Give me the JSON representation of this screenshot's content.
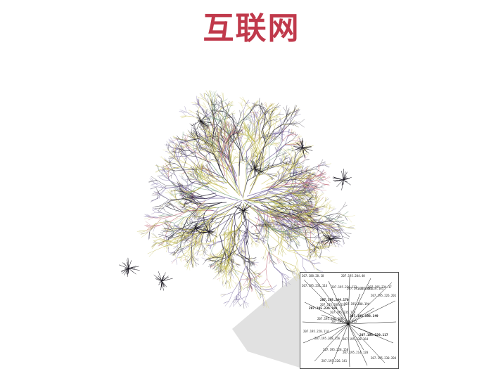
{
  "title": "互联网",
  "colors": {
    "title": "#c0394b",
    "edge_palette": [
      "#1e1a2a",
      "#6f5f9a",
      "#b5ad3a",
      "#d9d27c",
      "#c06a7a",
      "#7ea58a",
      "#44404f"
    ],
    "inset_lines": "#111111"
  },
  "inset": {
    "labels": [
      "207.188.28.18",
      "207.195.204.40",
      "207.195.231.114",
      "207.195.236.133",
      "207.195.226.184",
      "207.195.226.181",
      "207.195.234.17",
      "207.195.226.201",
      "207.195.204.170",
      "207.195.200.194",
      "207.195.208.132",
      "207.195.236.101",
      "207.195.235.174",
      "207.195.236.186",
      "207.195.198.149",
      "207.195.230.115",
      "207.195.228.114",
      "207.195.229.117",
      "207.195.228.156",
      "207.195.230.164",
      "207.195.228.158",
      "207.195.214.120",
      "207.195.230.204",
      "207.195.226.141"
    ]
  }
}
